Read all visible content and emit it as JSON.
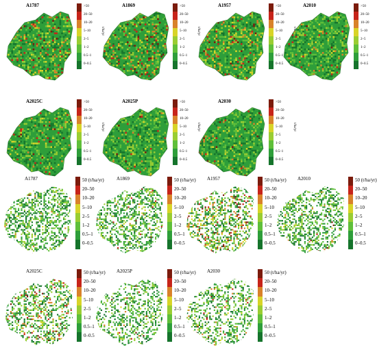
{
  "colors": {
    "ramp": [
      "#7b1b0c",
      "#c7241a",
      "#d9822a",
      "#d8d428",
      "#9acd32",
      "#5fbf3a",
      "#2e9e3a",
      "#16742c"
    ],
    "ramp_labels_order": "top_to_bottom"
  },
  "set_a": {
    "legend_labels": [
      ">50",
      "20–50",
      "10–20",
      "5–10",
      "2–5",
      "1–2",
      "0.5–1",
      "0–0.5"
    ],
    "unit": "t/ha/yr",
    "panels": [
      {
        "title": "A1787",
        "coverage": 1.0,
        "high_share": 0.22
      },
      {
        "title": "A1869",
        "coverage": 1.0,
        "high_share": 0.3
      },
      {
        "title": "A1957",
        "coverage": 1.0,
        "high_share": 0.28
      },
      {
        "title": "A2010",
        "coverage": 1.0,
        "high_share": 0.1
      },
      {
        "title": "A2025C",
        "coverage": 1.0,
        "high_share": 0.08
      },
      {
        "title": "A2025P",
        "coverage": 1.0,
        "high_share": 0.07
      },
      {
        "title": "A2030",
        "coverage": 1.0,
        "high_share": 0.1
      }
    ]
  },
  "set_b": {
    "legend_labels": [
      "50 (t/ha/yr)",
      "20–50",
      "10–20",
      "5–10",
      "2–5",
      "1–2",
      "0.5–1",
      "0–0.5"
    ],
    "panels": [
      {
        "title": "A1787",
        "coverage": 0.45,
        "high_share": 0.04
      },
      {
        "title": "A1869",
        "coverage": 0.42,
        "high_share": 0.06
      },
      {
        "title": "A1957",
        "coverage": 0.42,
        "high_share": 0.3
      },
      {
        "title": "A2010",
        "coverage": 0.4,
        "high_share": 0.05
      },
      {
        "title": "A2025C",
        "coverage": 0.38,
        "high_share": 0.2
      },
      {
        "title": "A2025P",
        "coverage": 0.36,
        "high_share": 0.06
      },
      {
        "title": "A2030",
        "coverage": 0.36,
        "high_share": 0.08
      }
    ]
  }
}
